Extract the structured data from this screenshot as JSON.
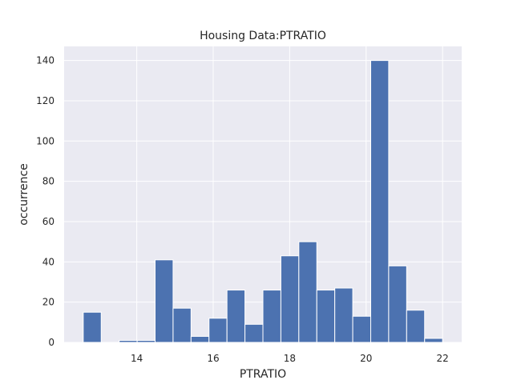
{
  "chart_data": {
    "type": "bar",
    "title": "Housing Data:PTRATIO",
    "xlabel": "PTRATIO",
    "ylabel": "occurrence",
    "bins": [
      {
        "x0": 12.6,
        "x1": 13.07,
        "count": 15
      },
      {
        "x0": 13.07,
        "x1": 13.54,
        "count": 0
      },
      {
        "x0": 13.54,
        "x1": 14.01,
        "count": 1
      },
      {
        "x0": 14.01,
        "x1": 14.48,
        "count": 1
      },
      {
        "x0": 14.48,
        "x1": 14.95,
        "count": 41
      },
      {
        "x0": 14.95,
        "x1": 15.42,
        "count": 17
      },
      {
        "x0": 15.42,
        "x1": 15.89,
        "count": 3
      },
      {
        "x0": 15.89,
        "x1": 16.36,
        "count": 12
      },
      {
        "x0": 16.36,
        "x1": 16.83,
        "count": 26
      },
      {
        "x0": 16.83,
        "x1": 17.3,
        "count": 9
      },
      {
        "x0": 17.3,
        "x1": 17.77,
        "count": 26
      },
      {
        "x0": 17.77,
        "x1": 18.24,
        "count": 43
      },
      {
        "x0": 18.24,
        "x1": 18.71,
        "count": 50
      },
      {
        "x0": 18.71,
        "x1": 19.18,
        "count": 26
      },
      {
        "x0": 19.18,
        "x1": 19.65,
        "count": 27
      },
      {
        "x0": 19.65,
        "x1": 20.12,
        "count": 13
      },
      {
        "x0": 20.12,
        "x1": 20.59,
        "count": 140
      },
      {
        "x0": 20.59,
        "x1": 21.06,
        "count": 38
      },
      {
        "x0": 21.06,
        "x1": 21.53,
        "count": 16
      },
      {
        "x0": 21.53,
        "x1": 22.0,
        "count": 2
      }
    ],
    "xlim": [
      12.1,
      22.5
    ],
    "ylim": [
      0,
      147
    ],
    "xticks": [
      14,
      16,
      18,
      20,
      22
    ],
    "yticks": [
      0,
      20,
      40,
      60,
      80,
      100,
      120,
      140
    ],
    "grid": true,
    "colors": {
      "bar": "#4c72b0",
      "bar_edge": "#ffffff",
      "plot_background": "#eaeaf2",
      "grid": "#ffffff"
    }
  }
}
